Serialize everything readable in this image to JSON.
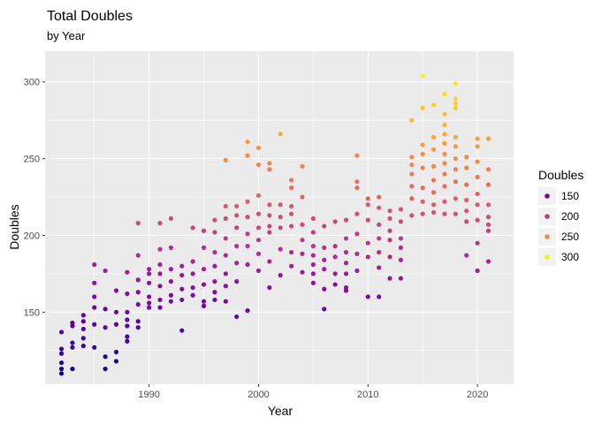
{
  "chart_data": {
    "type": "scatter",
    "title": "Total Doubles",
    "subtitle": "by Year",
    "xlabel": "Year",
    "ylabel": "Doubles",
    "xlim": [
      1980.5,
      2023.3
    ],
    "ylim": [
      103,
      320
    ],
    "x_ticks": [
      1990,
      2000,
      2010,
      2020
    ],
    "y_ticks": [
      150,
      200,
      250,
      300
    ],
    "grid": true,
    "legend": {
      "title": "Doubles",
      "position": "right",
      "entries": [
        150,
        200,
        250,
        300
      ]
    },
    "color_scale": {
      "name": "plasma",
      "min": 110,
      "max": 304,
      "stops": [
        "#0d0887",
        "#5402a3",
        "#8b0aa5",
        "#b93289",
        "#db5c68",
        "#f48849",
        "#febc2a",
        "#f0f921"
      ]
    },
    "points": [
      {
        "x": 1982,
        "y": 137
      },
      {
        "x": 1982,
        "y": 126
      },
      {
        "x": 1982,
        "y": 123
      },
      {
        "x": 1982,
        "y": 117
      },
      {
        "x": 1982,
        "y": 113
      },
      {
        "x": 1982,
        "y": 110
      },
      {
        "x": 1983,
        "y": 143
      },
      {
        "x": 1983,
        "y": 141
      },
      {
        "x": 1983,
        "y": 130
      },
      {
        "x": 1983,
        "y": 127
      },
      {
        "x": 1983,
        "y": 113
      },
      {
        "x": 1984,
        "y": 148
      },
      {
        "x": 1984,
        "y": 144
      },
      {
        "x": 1984,
        "y": 139
      },
      {
        "x": 1984,
        "y": 133
      },
      {
        "x": 1984,
        "y": 128
      },
      {
        "x": 1985,
        "y": 181
      },
      {
        "x": 1985,
        "y": 169
      },
      {
        "x": 1985,
        "y": 160
      },
      {
        "x": 1985,
        "y": 153
      },
      {
        "x": 1985,
        "y": 142
      },
      {
        "x": 1985,
        "y": 127
      },
      {
        "x": 1986,
        "y": 177
      },
      {
        "x": 1986,
        "y": 152
      },
      {
        "x": 1986,
        "y": 140
      },
      {
        "x": 1986,
        "y": 121
      },
      {
        "x": 1986,
        "y": 113
      },
      {
        "x": 1987,
        "y": 164
      },
      {
        "x": 1987,
        "y": 150
      },
      {
        "x": 1987,
        "y": 142
      },
      {
        "x": 1987,
        "y": 124
      },
      {
        "x": 1987,
        "y": 118
      },
      {
        "x": 1988,
        "y": 176
      },
      {
        "x": 1988,
        "y": 162
      },
      {
        "x": 1988,
        "y": 150
      },
      {
        "x": 1988,
        "y": 145
      },
      {
        "x": 1988,
        "y": 141
      },
      {
        "x": 1988,
        "y": 134
      },
      {
        "x": 1988,
        "y": 131
      },
      {
        "x": 1989,
        "y": 208
      },
      {
        "x": 1989,
        "y": 187
      },
      {
        "x": 1989,
        "y": 171
      },
      {
        "x": 1989,
        "y": 163
      },
      {
        "x": 1989,
        "y": 155
      },
      {
        "x": 1989,
        "y": 144
      },
      {
        "x": 1989,
        "y": 140
      },
      {
        "x": 1990,
        "y": 178
      },
      {
        "x": 1990,
        "y": 175
      },
      {
        "x": 1990,
        "y": 169
      },
      {
        "x": 1990,
        "y": 160
      },
      {
        "x": 1990,
        "y": 156
      },
      {
        "x": 1990,
        "y": 153
      },
      {
        "x": 1991,
        "y": 208
      },
      {
        "x": 1991,
        "y": 191
      },
      {
        "x": 1991,
        "y": 181
      },
      {
        "x": 1991,
        "y": 175
      },
      {
        "x": 1991,
        "y": 167
      },
      {
        "x": 1991,
        "y": 158
      },
      {
        "x": 1991,
        "y": 153
      },
      {
        "x": 1992,
        "y": 211
      },
      {
        "x": 1992,
        "y": 192
      },
      {
        "x": 1992,
        "y": 178
      },
      {
        "x": 1992,
        "y": 170
      },
      {
        "x": 1992,
        "y": 161
      },
      {
        "x": 1992,
        "y": 157
      },
      {
        "x": 1993,
        "y": 180
      },
      {
        "x": 1993,
        "y": 174
      },
      {
        "x": 1993,
        "y": 165
      },
      {
        "x": 1993,
        "y": 158
      },
      {
        "x": 1993,
        "y": 138
      },
      {
        "x": 1994,
        "y": 205
      },
      {
        "x": 1994,
        "y": 183
      },
      {
        "x": 1994,
        "y": 175
      },
      {
        "x": 1994,
        "y": 166
      },
      {
        "x": 1994,
        "y": 161
      },
      {
        "x": 1995,
        "y": 203
      },
      {
        "x": 1995,
        "y": 192
      },
      {
        "x": 1995,
        "y": 178
      },
      {
        "x": 1995,
        "y": 168
      },
      {
        "x": 1995,
        "y": 157
      },
      {
        "x": 1995,
        "y": 154
      },
      {
        "x": 1996,
        "y": 210
      },
      {
        "x": 1996,
        "y": 202
      },
      {
        "x": 1996,
        "y": 189
      },
      {
        "x": 1996,
        "y": 180
      },
      {
        "x": 1996,
        "y": 170
      },
      {
        "x": 1996,
        "y": 163
      },
      {
        "x": 1996,
        "y": 158
      },
      {
        "x": 1997,
        "y": 249
      },
      {
        "x": 1997,
        "y": 219
      },
      {
        "x": 1997,
        "y": 211
      },
      {
        "x": 1997,
        "y": 198
      },
      {
        "x": 1997,
        "y": 187
      },
      {
        "x": 1997,
        "y": 175
      },
      {
        "x": 1997,
        "y": 167
      },
      {
        "x": 1997,
        "y": 157
      },
      {
        "x": 1998,
        "y": 219
      },
      {
        "x": 1998,
        "y": 213
      },
      {
        "x": 1998,
        "y": 205
      },
      {
        "x": 1998,
        "y": 193
      },
      {
        "x": 1998,
        "y": 182
      },
      {
        "x": 1998,
        "y": 170
      },
      {
        "x": 1998,
        "y": 147
      },
      {
        "x": 1999,
        "y": 261
      },
      {
        "x": 1999,
        "y": 252
      },
      {
        "x": 1999,
        "y": 222
      },
      {
        "x": 1999,
        "y": 212
      },
      {
        "x": 1999,
        "y": 201
      },
      {
        "x": 1999,
        "y": 193
      },
      {
        "x": 1999,
        "y": 181
      },
      {
        "x": 1999,
        "y": 151
      },
      {
        "x": 2000,
        "y": 257
      },
      {
        "x": 2000,
        "y": 246
      },
      {
        "x": 2000,
        "y": 226
      },
      {
        "x": 2000,
        "y": 214
      },
      {
        "x": 2000,
        "y": 205
      },
      {
        "x": 2000,
        "y": 197
      },
      {
        "x": 2000,
        "y": 188
      },
      {
        "x": 2000,
        "y": 177
      },
      {
        "x": 2001,
        "y": 247
      },
      {
        "x": 2001,
        "y": 243
      },
      {
        "x": 2001,
        "y": 220
      },
      {
        "x": 2001,
        "y": 213
      },
      {
        "x": 2001,
        "y": 206
      },
      {
        "x": 2001,
        "y": 202
      },
      {
        "x": 2001,
        "y": 183
      },
      {
        "x": 2001,
        "y": 166
      },
      {
        "x": 2002,
        "y": 266
      },
      {
        "x": 2002,
        "y": 220
      },
      {
        "x": 2002,
        "y": 212
      },
      {
        "x": 2002,
        "y": 205
      },
      {
        "x": 2002,
        "y": 191
      },
      {
        "x": 2002,
        "y": 174
      },
      {
        "x": 2003,
        "y": 236
      },
      {
        "x": 2003,
        "y": 231
      },
      {
        "x": 2003,
        "y": 219
      },
      {
        "x": 2003,
        "y": 214
      },
      {
        "x": 2003,
        "y": 206
      },
      {
        "x": 2003,
        "y": 189
      },
      {
        "x": 2003,
        "y": 180
      },
      {
        "x": 2004,
        "y": 245
      },
      {
        "x": 2004,
        "y": 225
      },
      {
        "x": 2004,
        "y": 207
      },
      {
        "x": 2004,
        "y": 197
      },
      {
        "x": 2004,
        "y": 188
      },
      {
        "x": 2004,
        "y": 176
      },
      {
        "x": 2005,
        "y": 211
      },
      {
        "x": 2005,
        "y": 202
      },
      {
        "x": 2005,
        "y": 193
      },
      {
        "x": 2005,
        "y": 187
      },
      {
        "x": 2005,
        "y": 181
      },
      {
        "x": 2005,
        "y": 175
      },
      {
        "x": 2005,
        "y": 169
      },
      {
        "x": 2006,
        "y": 206
      },
      {
        "x": 2006,
        "y": 192
      },
      {
        "x": 2006,
        "y": 184
      },
      {
        "x": 2006,
        "y": 178
      },
      {
        "x": 2006,
        "y": 165
      },
      {
        "x": 2006,
        "y": 152
      },
      {
        "x": 2007,
        "y": 209
      },
      {
        "x": 2007,
        "y": 193
      },
      {
        "x": 2007,
        "y": 186
      },
      {
        "x": 2007,
        "y": 175
      },
      {
        "x": 2007,
        "y": 168
      },
      {
        "x": 2008,
        "y": 210
      },
      {
        "x": 2008,
        "y": 198
      },
      {
        "x": 2008,
        "y": 189
      },
      {
        "x": 2008,
        "y": 182
      },
      {
        "x": 2008,
        "y": 175
      },
      {
        "x": 2008,
        "y": 166
      },
      {
        "x": 2008,
        "y": 164
      },
      {
        "x": 2009,
        "y": 252
      },
      {
        "x": 2009,
        "y": 235
      },
      {
        "x": 2009,
        "y": 231
      },
      {
        "x": 2009,
        "y": 214
      },
      {
        "x": 2009,
        "y": 201
      },
      {
        "x": 2009,
        "y": 188
      },
      {
        "x": 2009,
        "y": 177
      },
      {
        "x": 2010,
        "y": 224
      },
      {
        "x": 2010,
        "y": 220
      },
      {
        "x": 2010,
        "y": 210
      },
      {
        "x": 2010,
        "y": 195
      },
      {
        "x": 2010,
        "y": 186
      },
      {
        "x": 2010,
        "y": 160
      },
      {
        "x": 2011,
        "y": 225
      },
      {
        "x": 2011,
        "y": 218
      },
      {
        "x": 2011,
        "y": 207
      },
      {
        "x": 2011,
        "y": 198
      },
      {
        "x": 2011,
        "y": 189
      },
      {
        "x": 2011,
        "y": 179
      },
      {
        "x": 2011,
        "y": 160
      },
      {
        "x": 2012,
        "y": 216
      },
      {
        "x": 2012,
        "y": 211
      },
      {
        "x": 2012,
        "y": 203
      },
      {
        "x": 2012,
        "y": 197
      },
      {
        "x": 2012,
        "y": 186
      },
      {
        "x": 2012,
        "y": 172
      },
      {
        "x": 2013,
        "y": 217
      },
      {
        "x": 2013,
        "y": 209
      },
      {
        "x": 2013,
        "y": 198
      },
      {
        "x": 2013,
        "y": 192
      },
      {
        "x": 2013,
        "y": 184
      },
      {
        "x": 2013,
        "y": 172
      },
      {
        "x": 2014,
        "y": 275
      },
      {
        "x": 2014,
        "y": 251
      },
      {
        "x": 2014,
        "y": 246
      },
      {
        "x": 2014,
        "y": 240
      },
      {
        "x": 2014,
        "y": 232
      },
      {
        "x": 2014,
        "y": 224
      },
      {
        "x": 2014,
        "y": 213
      },
      {
        "x": 2015,
        "y": 304
      },
      {
        "x": 2015,
        "y": 283
      },
      {
        "x": 2015,
        "y": 259
      },
      {
        "x": 2015,
        "y": 253
      },
      {
        "x": 2015,
        "y": 244
      },
      {
        "x": 2015,
        "y": 231
      },
      {
        "x": 2015,
        "y": 222
      },
      {
        "x": 2015,
        "y": 214
      },
      {
        "x": 2016,
        "y": 285
      },
      {
        "x": 2016,
        "y": 264
      },
      {
        "x": 2016,
        "y": 256
      },
      {
        "x": 2016,
        "y": 245
      },
      {
        "x": 2016,
        "y": 236
      },
      {
        "x": 2016,
        "y": 228
      },
      {
        "x": 2016,
        "y": 220
      },
      {
        "x": 2016,
        "y": 215
      },
      {
        "x": 2017,
        "y": 292
      },
      {
        "x": 2017,
        "y": 279
      },
      {
        "x": 2017,
        "y": 272
      },
      {
        "x": 2017,
        "y": 266
      },
      {
        "x": 2017,
        "y": 260
      },
      {
        "x": 2017,
        "y": 253
      },
      {
        "x": 2017,
        "y": 247
      },
      {
        "x": 2017,
        "y": 240
      },
      {
        "x": 2017,
        "y": 232
      },
      {
        "x": 2017,
        "y": 222
      },
      {
        "x": 2017,
        "y": 214
      },
      {
        "x": 2018,
        "y": 299
      },
      {
        "x": 2018,
        "y": 289
      },
      {
        "x": 2018,
        "y": 286
      },
      {
        "x": 2018,
        "y": 283
      },
      {
        "x": 2018,
        "y": 264
      },
      {
        "x": 2018,
        "y": 258
      },
      {
        "x": 2018,
        "y": 250
      },
      {
        "x": 2018,
        "y": 243
      },
      {
        "x": 2018,
        "y": 235
      },
      {
        "x": 2018,
        "y": 224
      },
      {
        "x": 2018,
        "y": 214
      },
      {
        "x": 2019,
        "y": 251
      },
      {
        "x": 2019,
        "y": 244
      },
      {
        "x": 2019,
        "y": 233
      },
      {
        "x": 2019,
        "y": 223
      },
      {
        "x": 2019,
        "y": 216
      },
      {
        "x": 2019,
        "y": 209
      },
      {
        "x": 2019,
        "y": 187
      },
      {
        "x": 2020,
        "y": 263
      },
      {
        "x": 2020,
        "y": 258
      },
      {
        "x": 2020,
        "y": 248
      },
      {
        "x": 2020,
        "y": 238
      },
      {
        "x": 2020,
        "y": 227
      },
      {
        "x": 2020,
        "y": 220
      },
      {
        "x": 2020,
        "y": 210
      },
      {
        "x": 2020,
        "y": 195
      },
      {
        "x": 2020,
        "y": 177
      },
      {
        "x": 2021,
        "y": 263
      },
      {
        "x": 2021,
        "y": 243
      },
      {
        "x": 2021,
        "y": 233
      },
      {
        "x": 2021,
        "y": 220
      },
      {
        "x": 2021,
        "y": 212
      },
      {
        "x": 2021,
        "y": 207
      },
      {
        "x": 2021,
        "y": 203
      },
      {
        "x": 2021,
        "y": 183
      }
    ]
  }
}
